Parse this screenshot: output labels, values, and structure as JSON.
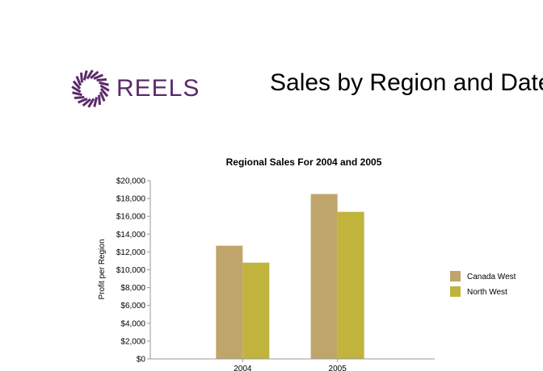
{
  "header": {
    "logo_text": "REELS",
    "page_title": "Sales by Region and Date"
  },
  "colors": {
    "brand": "#5a2a6b",
    "series_1": "#bfa56b",
    "series_2": "#c1b43d",
    "axis": "#999999"
  },
  "chart_data": {
    "type": "bar",
    "title": "Regional Sales For 2004 and 2005",
    "xlabel": "",
    "ylabel": "Profit per Region",
    "categories": [
      "2004",
      "2005"
    ],
    "series": [
      {
        "name": "Canada West",
        "values": [
          12700,
          18500
        ]
      },
      {
        "name": "North West",
        "values": [
          10800,
          16500
        ]
      }
    ],
    "ylim": [
      0,
      20000
    ],
    "yticks": [
      0,
      2000,
      4000,
      6000,
      8000,
      10000,
      12000,
      14000,
      16000,
      18000,
      20000
    ],
    "ytick_labels": [
      "$0",
      "$2,000",
      "$4,000",
      "$6,000",
      "$8,000",
      "$10,000",
      "$12,000",
      "$14,000",
      "$16,000",
      "$18,000",
      "$20,000"
    ],
    "grid": false,
    "legend_position": "right"
  }
}
